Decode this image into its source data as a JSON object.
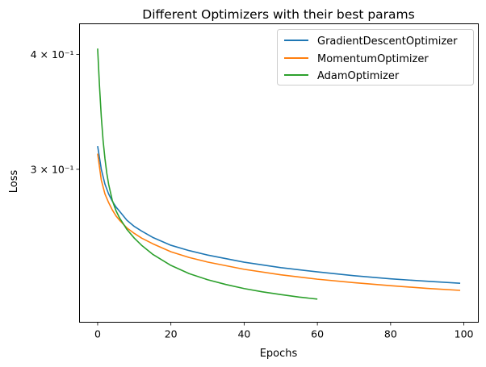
{
  "chart_data": {
    "type": "line",
    "title": "Different Optimizers with their best params",
    "xlabel": "Epochs",
    "ylabel": "Loss",
    "xlim": [
      -4.95,
      103.95
    ],
    "ylim": [
      0.2045,
      0.432
    ],
    "yscale": "log",
    "grid": false,
    "legend_position": "top-right",
    "xticks": [
      0,
      20,
      40,
      60,
      80,
      100
    ],
    "yticks": [
      {
        "value": 0.3,
        "label": "3 × 10⁻¹"
      },
      {
        "value": 0.4,
        "label": "4 × 10⁻¹"
      }
    ],
    "series": [
      {
        "name": "GradientDescentOptimizer",
        "color": "#1f77b4",
        "x": [
          0,
          1,
          2,
          3,
          4,
          5,
          6,
          8,
          10,
          12,
          15,
          20,
          25,
          30,
          40,
          50,
          60,
          70,
          80,
          90,
          99
        ],
        "y": [
          0.318,
          0.3,
          0.289,
          0.282,
          0.277,
          0.273,
          0.27,
          0.264,
          0.26,
          0.257,
          0.253,
          0.248,
          0.2447,
          0.242,
          0.2377,
          0.2345,
          0.232,
          0.2298,
          0.228,
          0.2266,
          0.2255
        ]
      },
      {
        "name": "MomentumOptimizer",
        "color": "#ff7f0e",
        "x": [
          0,
          1,
          2,
          3,
          4,
          5,
          6,
          8,
          10,
          12,
          15,
          20,
          25,
          30,
          40,
          50,
          60,
          70,
          80,
          90,
          99
        ],
        "y": [
          0.312,
          0.292,
          0.282,
          0.276,
          0.271,
          0.267,
          0.264,
          0.259,
          0.2555,
          0.2525,
          0.249,
          0.244,
          0.2405,
          0.2378,
          0.2335,
          0.2303,
          0.2278,
          0.2258,
          0.2241,
          0.2226,
          0.2215
        ]
      },
      {
        "name": "AdamOptimizer",
        "color": "#2ca02c",
        "x": [
          0,
          0.5,
          1,
          1.5,
          2,
          2.5,
          3,
          4,
          5,
          6,
          8,
          10,
          12,
          15,
          20,
          25,
          30,
          35,
          40,
          45,
          50,
          55,
          60
        ],
        "y": [
          0.406,
          0.37,
          0.342,
          0.322,
          0.308,
          0.297,
          0.289,
          0.2775,
          0.2705,
          0.2655,
          0.258,
          0.2525,
          0.248,
          0.2425,
          0.2358,
          0.231,
          0.2275,
          0.2248,
          0.2225,
          0.2207,
          0.2192,
          0.2178,
          0.2167
        ]
      }
    ]
  }
}
